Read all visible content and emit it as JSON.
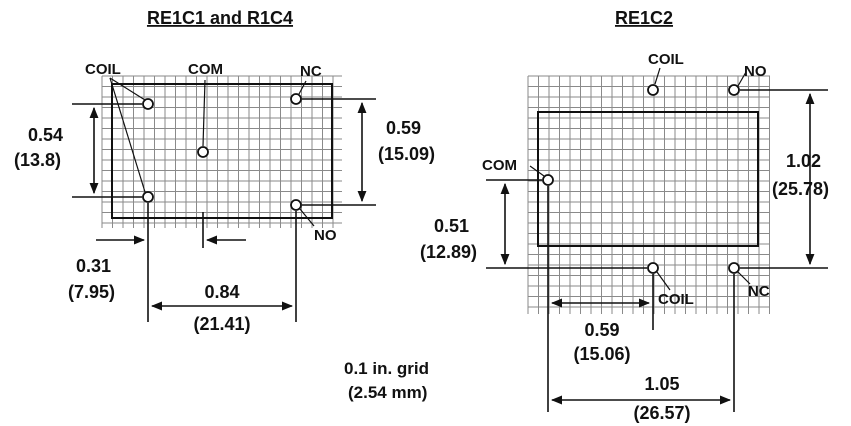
{
  "left": {
    "title": "RE1C1 and R1C4",
    "pins": {
      "coil": "COIL",
      "com": "COM",
      "nc": "NC",
      "no": "NO"
    },
    "dims": {
      "height_in": "0.54",
      "height_mm": "(13.8)",
      "right_in": "0.59",
      "right_mm": "(15.09)",
      "offset_in": "0.31",
      "offset_mm": "(7.95)",
      "width_in": "0.84",
      "width_mm": "(21.41)"
    }
  },
  "right": {
    "title": "RE1C2",
    "pins": {
      "coil_top": "COIL",
      "no": "NO",
      "com": "COM",
      "coil_bottom": "COIL",
      "nc": "NC"
    },
    "dims": {
      "height_in": "1.02",
      "height_mm": "(25.78)",
      "left_in": "0.51",
      "left_mm": "(12.89)",
      "mid_in": "0.59",
      "mid_mm": "(15.06)",
      "width_in": "1.05",
      "width_mm": "(26.57)"
    }
  },
  "grid_note": {
    "line1": "0.1 in. grid",
    "line2": "(2.54 mm)"
  }
}
